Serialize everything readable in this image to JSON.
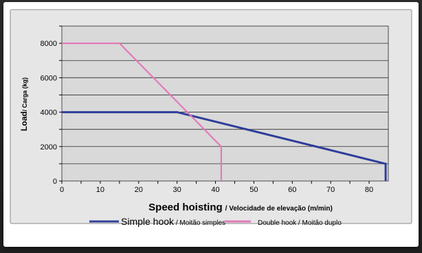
{
  "chart_data": {
    "type": "line",
    "ylabel": {
      "main": "Load",
      "sub": "/ Carga (kg)"
    },
    "xlabel": {
      "main": "Speed hoisting",
      "sub": "/ Velocidade de elevação (m/min)"
    },
    "xlim": [
      0,
      85
    ],
    "ylim": [
      0,
      9000
    ],
    "x_ticks": [
      "0",
      "10",
      "20",
      "30",
      "40",
      "50",
      "60",
      "70",
      "80"
    ],
    "y_ticks": [
      "0",
      "2000",
      "4000",
      "6000",
      "8000"
    ],
    "grid": true,
    "legend_position": "bottom",
    "series": [
      {
        "name_main": "Simple hook",
        "name_sub": " / Moitão simples",
        "color": "#2e3d9a",
        "points": [
          [
            0,
            4000
          ],
          [
            30,
            4000
          ],
          [
            84.3,
            1000
          ],
          [
            84.3,
            0
          ]
        ]
      },
      {
        "name_main": "Double hook",
        "name_sub": " / Moitão duplo",
        "color": "#e27ab8",
        "points": [
          [
            0,
            8000
          ],
          [
            15,
            8000
          ],
          [
            41.5,
            2000
          ],
          [
            41.5,
            0
          ]
        ]
      }
    ]
  }
}
